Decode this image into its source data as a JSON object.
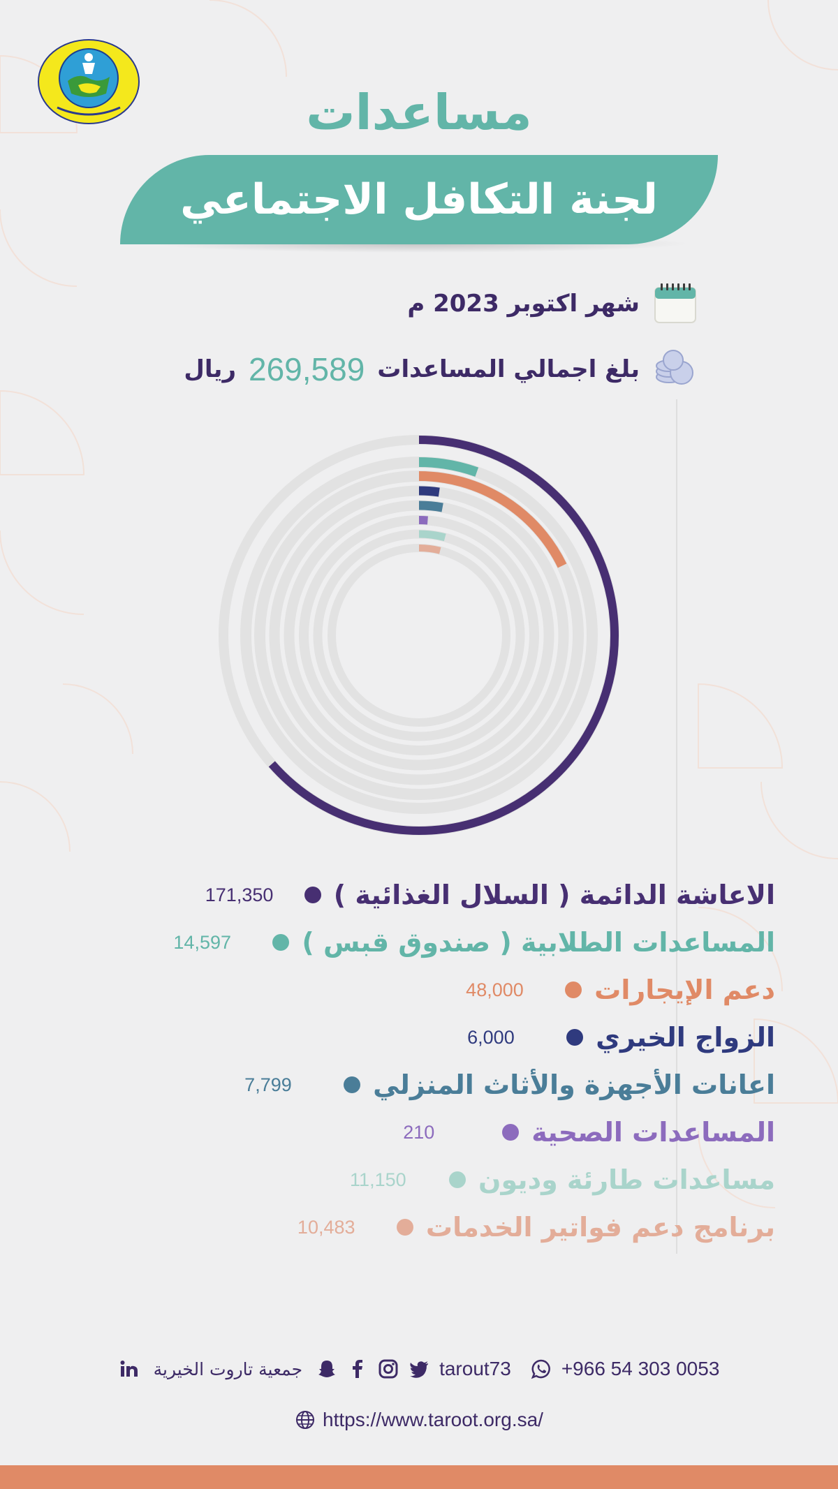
{
  "header": {
    "title_top": "مساعدات",
    "title_banner": "لجنة التكافل الاجتماعي"
  },
  "info": {
    "date_text": "شهر اكتوبر  2023 م",
    "total_prefix": "بلغ اجمالي المساعدات",
    "total_value": "269,589",
    "total_currency": "ريال"
  },
  "chart_data": {
    "type": "radial-bar",
    "max_value": 269589,
    "series": [
      {
        "name": "الاعاشة الدائمة ( السلال الغذائية )",
        "value": 171350,
        "label": "171,350",
        "color": "#472f72"
      },
      {
        "name": "المساعدات الطلابية ( صندوق قبس )",
        "value": 14597,
        "label": "14,597",
        "color": "#62b5a8"
      },
      {
        "name": "دعم الإيجارات",
        "value": 48000,
        "label": "48,000",
        "color": "#e08a66"
      },
      {
        "name": "الزواج الخيري",
        "value": 6000,
        "label": "6,000",
        "color": "#2f3a7e"
      },
      {
        "name": "اعانات الأجهزة والأثاث المنزلي",
        "value": 7799,
        "label": "7,799",
        "color": "#4a7d98"
      },
      {
        "name": "المساعدات الصحية",
        "value": 210,
        "label": "210",
        "color": "#8c6bbd"
      },
      {
        "name": "مساعدات طارئة وديون",
        "value": 11150,
        "label": "11,150",
        "color": "#a9d4cb"
      },
      {
        "name": "برنامج دعم فواتير الخدمات",
        "value": 10483,
        "label": "10,483",
        "color": "#e3ad99"
      }
    ]
  },
  "footer": {
    "phone": "+966 54 303 0053",
    "handle": "tarout73",
    "org_name": "جمعية تاروت الخيرية",
    "website": "https://www.taroot.org.sa/"
  },
  "colors": {
    "teal": "#62b5a8",
    "purple": "#472f72",
    "orange": "#e08a66",
    "background": "#efeff0"
  }
}
